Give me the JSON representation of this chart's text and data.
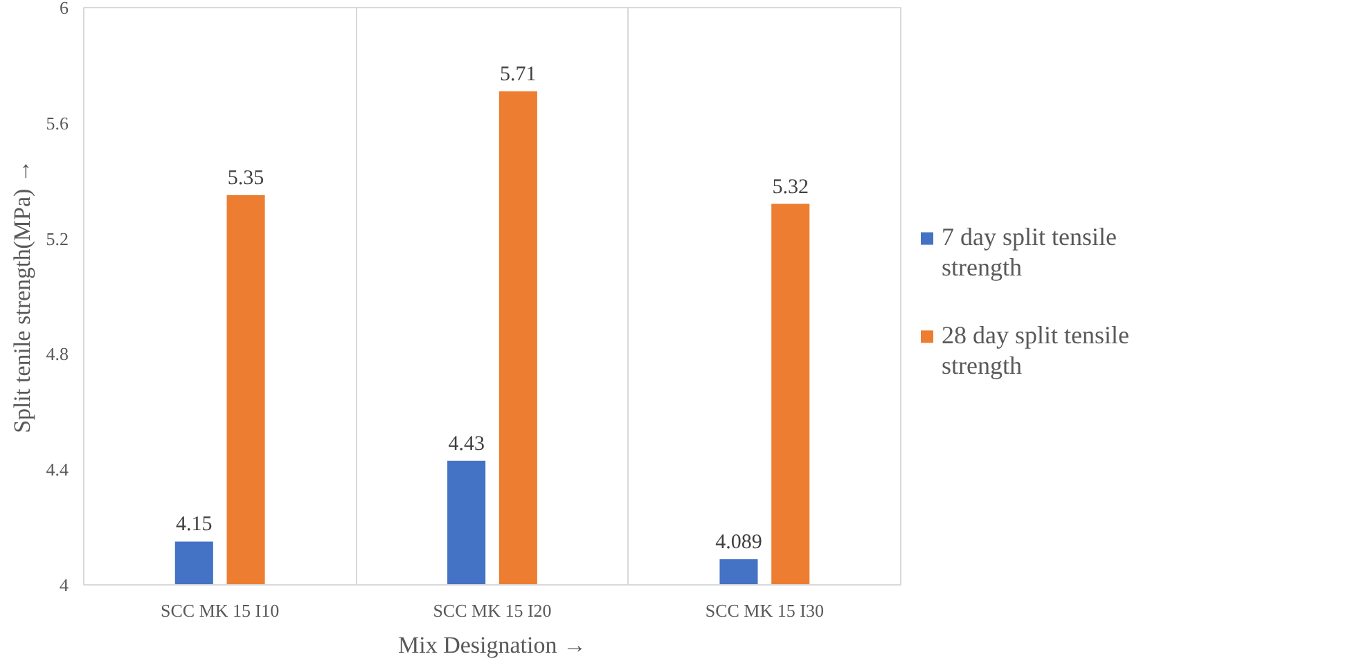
{
  "chart_data": {
    "type": "bar",
    "xlabel": "Mix Designation →",
    "ylabel": "Split tenile strength(MPa) →",
    "categories": [
      "SCC MK 15 I10",
      "SCC MK 15 I20",
      "SCC MK 15 I30"
    ],
    "series": [
      {
        "name": "7 day split tensile strength",
        "color": "#4472c4",
        "values": [
          4.15,
          4.43,
          4.089
        ]
      },
      {
        "name": "28 day split tensile strength",
        "color": "#ed7d31",
        "values": [
          5.35,
          5.71,
          5.32
        ]
      }
    ],
    "ylim": [
      4,
      6
    ],
    "yticks": [
      4,
      4.4,
      4.8,
      5.2,
      5.6,
      6
    ],
    "grid": "x",
    "legend": "right",
    "data_labels": true
  }
}
